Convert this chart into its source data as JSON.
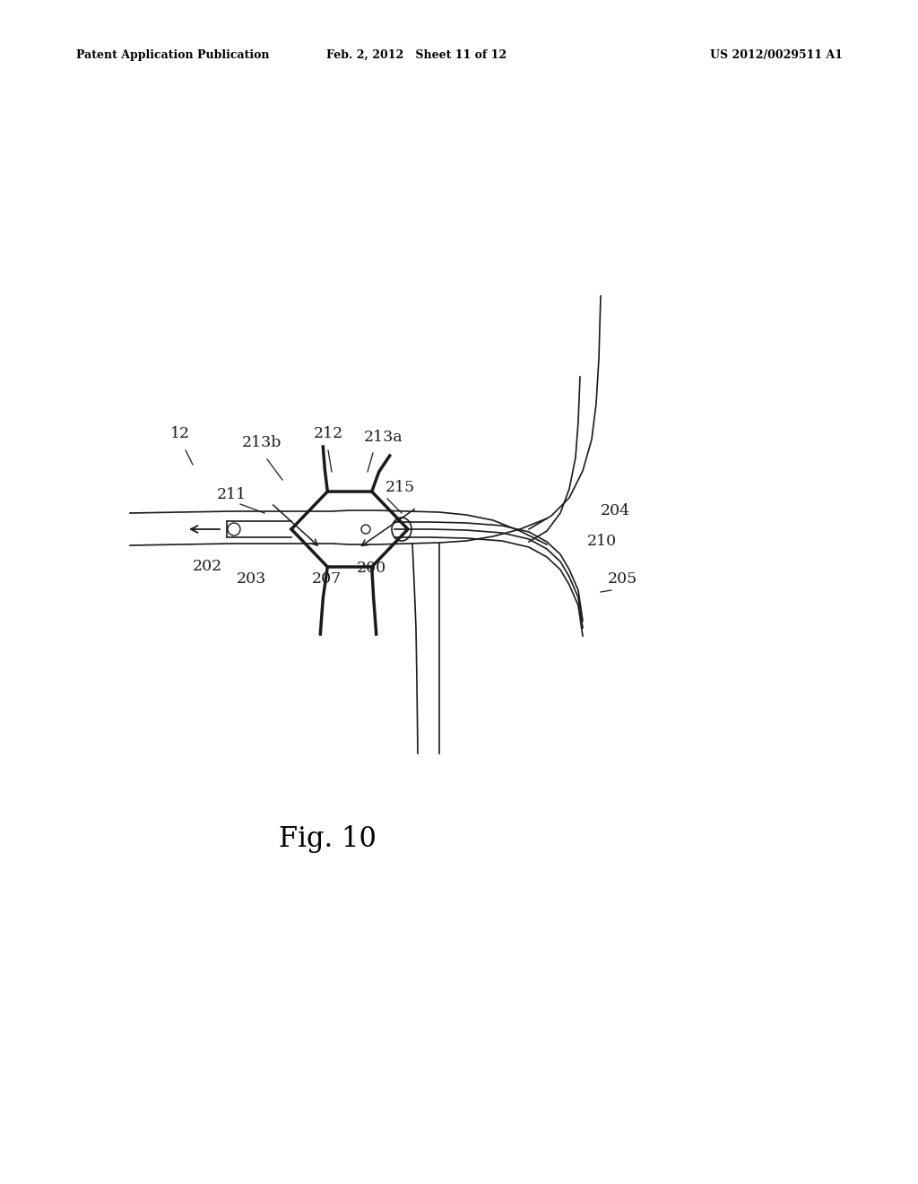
{
  "bg_color": "#ffffff",
  "line_color": "#1a1a1a",
  "header_left": "Patent Application Publication",
  "header_mid": "Feb. 2, 2012   Sheet 11 of 12",
  "header_right": "US 2012/0029511 A1",
  "fig_label": "Fig. 10",
  "lw_thin": 1.2,
  "lw_thick": 2.5,
  "hcx": 0.375,
  "hcy": 0.565,
  "hw": 0.058,
  "hh": 0.033
}
